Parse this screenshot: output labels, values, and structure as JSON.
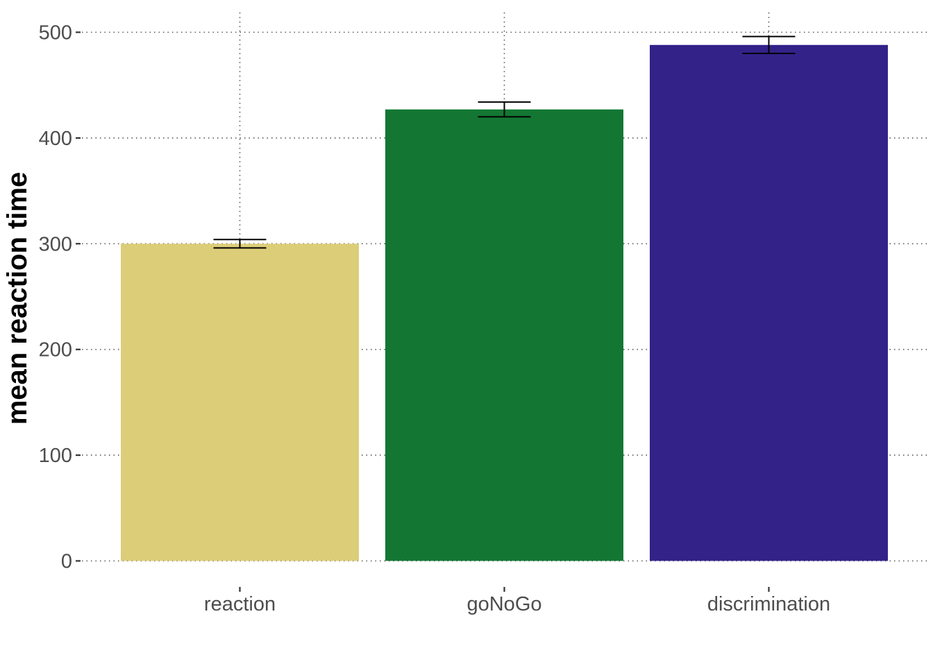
{
  "chart_data": {
    "type": "bar",
    "title": "",
    "xlabel": "",
    "ylabel": "mean reaction time",
    "categories": [
      "reaction",
      "goNoGo",
      "discrimination"
    ],
    "values": [
      300,
      427,
      488
    ],
    "error_low": [
      296,
      420,
      480
    ],
    "error_high": [
      304,
      434,
      496
    ],
    "colors": [
      "#dccd78",
      "#137733",
      "#332288"
    ],
    "ylim": [
      0,
      500
    ],
    "yticks": [
      0,
      100,
      200,
      300,
      400,
      500
    ],
    "grid": true,
    "legend": "none"
  }
}
